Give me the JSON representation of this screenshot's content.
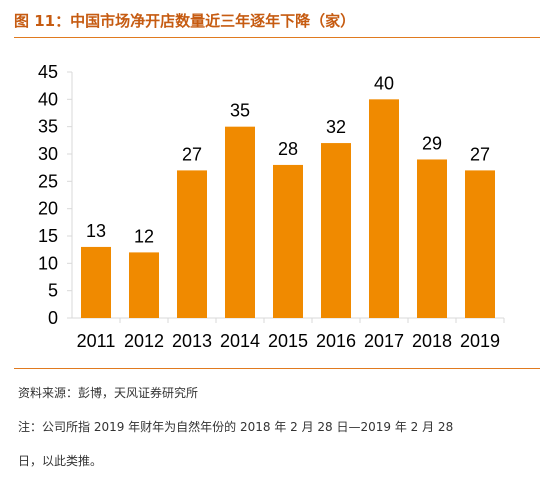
{
  "chart_data": {
    "type": "bar",
    "title": "图 11：中国市场净开店数量近三年逐年下降（家）",
    "categories": [
      "2011",
      "2012",
      "2013",
      "2014",
      "2015",
      "2016",
      "2017",
      "2018",
      "2019"
    ],
    "values": [
      13,
      12,
      27,
      35,
      28,
      32,
      40,
      29,
      27
    ],
    "data_labels": [
      "13",
      "12",
      "27",
      "35",
      "28",
      "32",
      "40",
      "29",
      "27"
    ],
    "yticks": [
      "0",
      "5",
      "10",
      "15",
      "20",
      "25",
      "30",
      "35",
      "40",
      "45"
    ],
    "ylim": [
      0,
      45
    ],
    "grid": false,
    "legend": "none",
    "bar_color": "#f08a00",
    "text_color": "#000000",
    "axis_color": "#d9d9d9"
  },
  "notes": {
    "source": "资料来源：彭博，天风证券研究所",
    "line1": "注：公司所指 2019 年财年为自然年份的 2018 年 2 月 28 日—2019 年 2 月 28",
    "line2": "日，以此类推。"
  }
}
